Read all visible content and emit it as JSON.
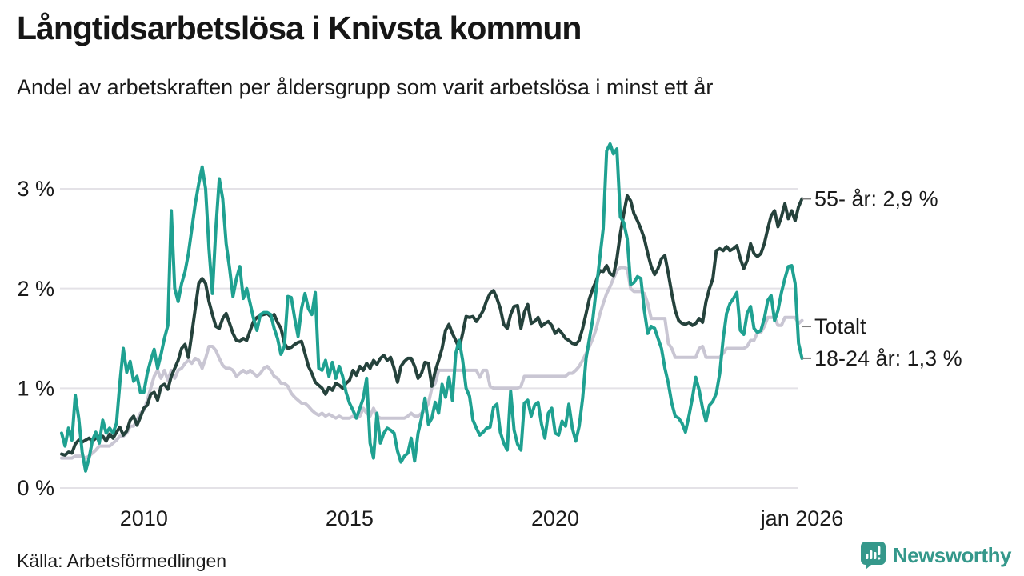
{
  "title": "Långtidsarbetslösa i Knivsta kommun",
  "subtitle": "Andel av arbetskraften per åldersgrupp som varit arbetslösa i minst ett år",
  "source": "Källa: Arbetsförmedlingen",
  "logo": {
    "name": "Newsworthy",
    "icon": "newsworthy-chart-bubble-icon",
    "color": "#35988b"
  },
  "colors": {
    "text": "#1b1b1b",
    "grid": "#e4e2e7",
    "label_dash": "#7f7f7f",
    "series_55": "#25423c",
    "series_total": "#c9c6d3",
    "series_18_24": "#1fa191"
  },
  "chart_data": {
    "type": "line",
    "x_start": "2008-01",
    "x_end": "2026-01",
    "x_interval": "monthly",
    "ylim": [
      0,
      3.5
    ],
    "grid": "horizontal",
    "legend_position": "right-end-labels",
    "y_ticks": [
      {
        "label": "3 %",
        "value": 3
      },
      {
        "label": "2 %",
        "value": 2
      },
      {
        "label": "1 %",
        "value": 1
      },
      {
        "label": "0 %",
        "value": 0
      }
    ],
    "x_ticks": [
      {
        "label": "2010",
        "month_index": 24
      },
      {
        "label": "2015",
        "month_index": 84
      },
      {
        "label": "2020",
        "month_index": 144
      },
      {
        "label": "jan 2026",
        "month_index": 216
      }
    ],
    "series": [
      {
        "name": "55- år",
        "color": "#25423c",
        "end_label": "55- år: 2,9 %",
        "label_value": 2.9,
        "values": [
          0.34,
          0.33,
          0.36,
          0.35,
          0.44,
          0.48,
          0.46,
          0.48,
          0.5,
          0.47,
          0.5,
          0.52,
          0.52,
          0.47,
          0.54,
          0.5,
          0.56,
          0.61,
          0.53,
          0.57,
          0.68,
          0.72,
          0.63,
          0.71,
          0.8,
          0.83,
          0.94,
          0.96,
          0.88,
          1.02,
          1.04,
          0.99,
          1.12,
          1.2,
          1.28,
          1.4,
          1.44,
          1.31,
          1.55,
          1.8,
          2.05,
          2.1,
          2.05,
          1.87,
          1.74,
          1.62,
          1.6,
          1.7,
          1.75,
          1.65,
          1.55,
          1.48,
          1.47,
          1.5,
          1.48,
          1.58,
          1.67,
          1.71,
          1.73,
          1.74,
          1.75,
          1.72,
          1.74,
          1.66,
          1.6,
          1.45,
          1.4,
          1.41,
          1.44,
          1.46,
          1.47,
          1.35,
          1.22,
          1.15,
          1.06,
          1.03,
          1.0,
          0.94,
          1.01,
          0.98,
          1.05,
          1.03,
          1.0,
          1.05,
          1.08,
          1.18,
          1.13,
          1.22,
          1.18,
          1.25,
          1.2,
          1.28,
          1.24,
          1.3,
          1.33,
          1.28,
          1.31,
          1.2,
          1.06,
          1.22,
          1.27,
          1.3,
          1.3,
          1.22,
          1.1,
          1.15,
          1.26,
          1.25,
          1.02,
          1.17,
          1.28,
          1.4,
          1.58,
          1.64,
          1.55,
          1.48,
          1.4,
          1.55,
          1.72,
          1.71,
          1.72,
          1.67,
          1.72,
          1.78,
          1.88,
          1.95,
          1.98,
          1.9,
          1.8,
          1.64,
          1.6,
          1.74,
          1.82,
          1.83,
          1.6,
          1.76,
          1.84,
          1.65,
          1.67,
          1.71,
          1.62,
          1.65,
          1.67,
          1.63,
          1.55,
          1.59,
          1.55,
          1.5,
          1.48,
          1.45,
          1.44,
          1.48,
          1.6,
          1.75,
          1.9,
          2.0,
          2.08,
          2.18,
          2.17,
          2.23,
          2.15,
          2.13,
          2.3,
          2.55,
          2.75,
          2.93,
          2.88,
          2.75,
          2.68,
          2.6,
          2.5,
          2.35,
          2.22,
          2.14,
          2.2,
          2.3,
          2.33,
          2.15,
          1.95,
          1.78,
          1.68,
          1.65,
          1.64,
          1.66,
          1.63,
          1.65,
          1.7,
          1.66,
          1.87,
          2.0,
          2.1,
          2.38,
          2.4,
          2.38,
          2.42,
          2.38,
          2.4,
          2.43,
          2.3,
          2.2,
          2.28,
          2.45,
          2.35,
          2.32,
          2.35,
          2.45,
          2.6,
          2.73,
          2.78,
          2.62,
          2.72,
          2.85,
          2.7,
          2.78,
          2.68,
          2.82,
          2.9
        ]
      },
      {
        "name": "Totalt",
        "color": "#c9c6d3",
        "end_label": "Totalt",
        "label_value": 1.62,
        "values": [
          0.3,
          0.3,
          0.3,
          0.3,
          0.32,
          0.32,
          0.32,
          0.3,
          0.32,
          0.35,
          0.38,
          0.42,
          0.42,
          0.42,
          0.42,
          0.45,
          0.48,
          0.52,
          0.52,
          0.55,
          0.62,
          0.62,
          0.68,
          0.75,
          0.78,
          0.88,
          1.0,
          1.12,
          1.18,
          1.1,
          1.18,
          1.08,
          1.18,
          1.1,
          1.18,
          1.2,
          1.25,
          1.28,
          1.25,
          1.3,
          1.28,
          1.2,
          1.3,
          1.42,
          1.42,
          1.38,
          1.3,
          1.23,
          1.2,
          1.2,
          1.18,
          1.12,
          1.15,
          1.18,
          1.15,
          1.18,
          1.15,
          1.12,
          1.15,
          1.2,
          1.22,
          1.18,
          1.12,
          1.1,
          1.05,
          1.05,
          1.02,
          0.95,
          0.91,
          0.88,
          0.85,
          0.85,
          0.82,
          0.78,
          0.75,
          0.73,
          0.75,
          0.72,
          0.74,
          0.72,
          0.7,
          0.72,
          0.7,
          0.7,
          0.7,
          0.72,
          0.7,
          0.72,
          0.8,
          0.75,
          0.72,
          0.8,
          0.72,
          0.7,
          0.7,
          0.7,
          0.7,
          0.7,
          0.7,
          0.7,
          0.7,
          0.72,
          0.75,
          0.72,
          0.72,
          0.75,
          0.78,
          0.85,
          1.0,
          1.05,
          1.18,
          1.18,
          1.18,
          1.18,
          1.18,
          1.18,
          1.18,
          1.18,
          1.18,
          1.18,
          1.18,
          1.18,
          1.11,
          1.18,
          1.18,
          1.02,
          1.0,
          1.0,
          1.0,
          1.0,
          1.0,
          1.0,
          1.0,
          1.0,
          1.02,
          1.12,
          1.12,
          1.12,
          1.12,
          1.12,
          1.12,
          1.12,
          1.12,
          1.12,
          1.12,
          1.12,
          1.12,
          1.12,
          1.15,
          1.15,
          1.18,
          1.22,
          1.28,
          1.35,
          1.42,
          1.5,
          1.6,
          1.74,
          1.85,
          1.95,
          2.02,
          2.1,
          2.18,
          2.21,
          2.21,
          2.2,
          2.0,
          1.97,
          1.97,
          1.97,
          1.95,
          1.85,
          1.7,
          1.7,
          1.7,
          1.7,
          1.7,
          1.45,
          1.4,
          1.31,
          1.31,
          1.31,
          1.31,
          1.31,
          1.31,
          1.31,
          1.4,
          1.42,
          1.31,
          1.31,
          1.31,
          1.31,
          1.31,
          1.35,
          1.4,
          1.4,
          1.4,
          1.4,
          1.4,
          1.4,
          1.42,
          1.48,
          1.48,
          1.56,
          1.56,
          1.62,
          1.71,
          1.71,
          1.71,
          1.63,
          1.63,
          1.71,
          1.71,
          1.71,
          1.71,
          1.65,
          1.68
        ]
      },
      {
        "name": "18-24 år",
        "color": "#1fa191",
        "end_label": "18-24 år: 1,3 %",
        "label_value": 1.3,
        "values": [
          0.55,
          0.42,
          0.6,
          0.48,
          0.93,
          0.7,
          0.36,
          0.17,
          0.3,
          0.48,
          0.56,
          0.45,
          0.68,
          0.55,
          0.6,
          0.55,
          0.65,
          1.05,
          1.4,
          1.16,
          1.27,
          1.07,
          1.12,
          0.96,
          0.96,
          1.15,
          1.28,
          1.39,
          1.2,
          1.34,
          1.5,
          1.63,
          2.78,
          2.0,
          1.87,
          2.05,
          2.17,
          2.35,
          2.6,
          2.85,
          3.05,
          3.22,
          3.0,
          2.4,
          1.95,
          2.6,
          3.1,
          2.9,
          2.45,
          2.2,
          1.92,
          2.1,
          2.22,
          1.9,
          2.0,
          1.85,
          1.7,
          1.58,
          1.74,
          1.76,
          1.76,
          1.74,
          1.6,
          1.5,
          1.34,
          1.42,
          1.92,
          1.91,
          1.7,
          1.52,
          1.8,
          1.95,
          1.8,
          1.74,
          1.96,
          1.2,
          1.18,
          1.28,
          1.12,
          1.26,
          1.1,
          1.22,
          1.12,
          0.96,
          0.85,
          0.78,
          0.7,
          0.8,
          0.9,
          1.1,
          0.45,
          0.3,
          0.75,
          0.45,
          0.55,
          0.6,
          0.58,
          0.55,
          0.37,
          0.26,
          0.32,
          0.35,
          0.5,
          0.27,
          0.55,
          0.7,
          0.9,
          0.64,
          0.7,
          0.86,
          0.75,
          1.04,
          0.91,
          1.11,
          0.88,
          1.35,
          1.48,
          1.28,
          1.0,
          0.92,
          0.68,
          0.6,
          0.53,
          0.56,
          0.6,
          0.61,
          0.81,
          0.84,
          0.56,
          0.45,
          0.38,
          0.97,
          0.58,
          0.44,
          0.38,
          0.85,
          0.88,
          0.72,
          0.83,
          0.86,
          0.64,
          0.5,
          0.75,
          0.8,
          0.55,
          0.53,
          0.67,
          0.62,
          0.84,
          0.6,
          0.47,
          0.62,
          0.9,
          1.3,
          1.5,
          1.7,
          2.0,
          2.3,
          2.6,
          3.38,
          3.45,
          3.35,
          3.4,
          2.72,
          2.66,
          2.5,
          2.04,
          2.06,
          2.12,
          2.1,
          1.78,
          1.55,
          1.62,
          1.6,
          1.5,
          1.4,
          1.2,
          1.05,
          0.85,
          0.72,
          0.7,
          0.65,
          0.56,
          0.72,
          0.9,
          1.11,
          0.98,
          0.8,
          0.67,
          0.83,
          0.87,
          0.95,
          1.15,
          1.5,
          1.75,
          1.85,
          1.9,
          1.96,
          1.58,
          1.54,
          1.75,
          1.82,
          1.6,
          1.56,
          1.58,
          1.7,
          1.88,
          1.93,
          1.68,
          1.78,
          1.96,
          2.1,
          2.22,
          2.23,
          2.05,
          1.45,
          1.3
        ]
      }
    ]
  }
}
